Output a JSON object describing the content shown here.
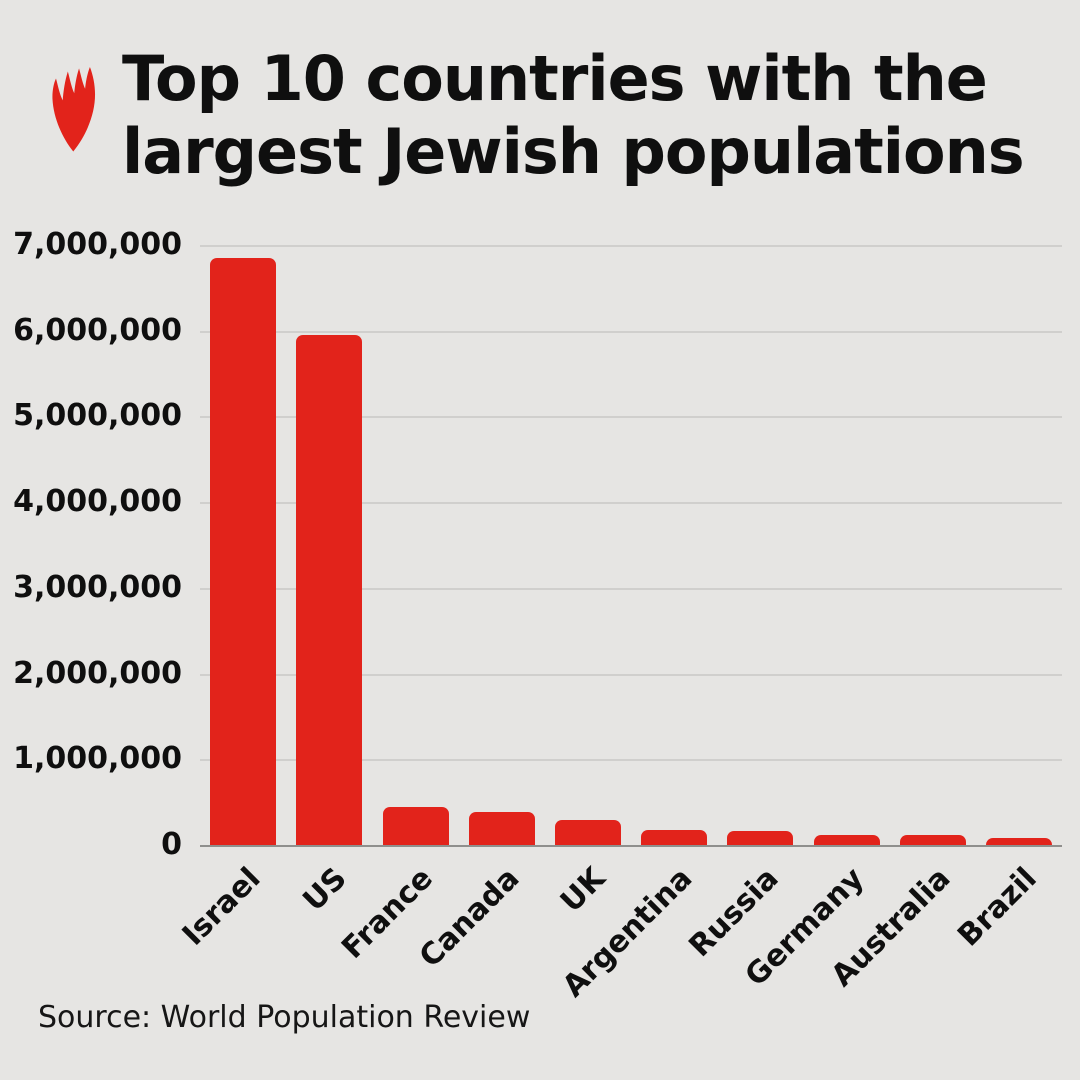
{
  "page": {
    "background": "#e6e5e3"
  },
  "brand": {
    "logo_icon": "sbs-flame-icon",
    "brand_color": "#e2231b"
  },
  "header": {
    "title_line1": "Top 10 countries with the",
    "title_line2": "largest Jewish populations"
  },
  "footer": {
    "source": "Source: World Population Review"
  },
  "chart_data": {
    "type": "bar",
    "title": "Top 10 countries with the largest Jewish populations",
    "categories": [
      "Israel",
      "US",
      "France",
      "Canada",
      "UK",
      "Argentina",
      "Russia",
      "Germany",
      "Australia",
      "Brazil"
    ],
    "values": [
      6850000,
      5950000,
      440000,
      390000,
      290000,
      180000,
      160000,
      120000,
      115000,
      85000
    ],
    "xlabel": "",
    "ylabel": "",
    "ylim": [
      0,
      7000000
    ],
    "y_ticks": [
      "7,000,000",
      "6,000,000",
      "5,000,000",
      "4,000,000",
      "3,000,000",
      "2,000,000",
      "1,000,000",
      "0"
    ],
    "grid": "horizontal",
    "legend": "none",
    "bar_color": "#e2231b",
    "source": "Source: World Population Review"
  }
}
